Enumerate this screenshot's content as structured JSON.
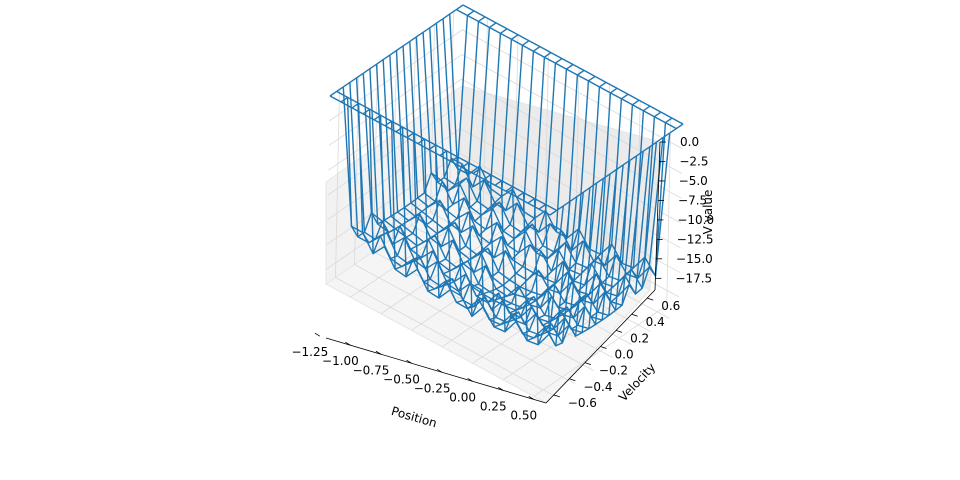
{
  "chart_data": {
    "type": "wireframe-3d",
    "title": "",
    "xlabel": "Position",
    "ylabel": "Velocity",
    "zlabel": "V value",
    "xlim": [
      -1.2,
      0.6
    ],
    "ylim": [
      -0.7,
      0.7
    ],
    "zlim": [
      -19,
      0
    ],
    "x_ticks": [
      "−1.25",
      "−1.00",
      "−0.75",
      "−0.50",
      "−0.25",
      "0.00",
      "0.25",
      "0.50"
    ],
    "y_ticks": [
      "−0.6",
      "−0.4",
      "−0.2",
      "0.0",
      "0.2",
      "0.4",
      "0.6"
    ],
    "z_ticks": [
      "0.0",
      "−2.5",
      "−5.0",
      "−7.5",
      "−10.0",
      "−12.5",
      "−15.0",
      "−17.5"
    ],
    "x_tick_values": [
      -1.25,
      -1.0,
      -0.75,
      -0.5,
      -0.25,
      0.0,
      0.25,
      0.5
    ],
    "y_tick_values": [
      -0.6,
      -0.4,
      -0.2,
      0.0,
      0.2,
      0.4,
      0.6
    ],
    "z_tick_values": [
      0.0,
      -2.5,
      -5.0,
      -7.5,
      -10.0,
      -12.5,
      -15.0,
      -17.5
    ],
    "grid": true,
    "grid_resolution": [
      20,
      20
    ],
    "series": [
      {
        "color": "#1f77b4",
        "surface": "V value over (Position, Velocity): near 0 at the plateau edges, dropping to about −18 in the interior basin",
        "z_min": -18,
        "z_max": 0
      }
    ]
  }
}
